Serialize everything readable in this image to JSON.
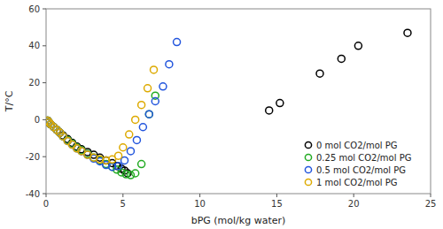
{
  "chart_data": {
    "type": "scatter",
    "x_label": "bPG (mol/kg water)",
    "y_label": "T/°C",
    "xlim": [
      0,
      25
    ],
    "ylim": [
      -40,
      60
    ],
    "xticks": [
      0,
      5,
      10,
      15,
      20,
      25
    ],
    "yticks": [
      -40,
      -20,
      0,
      20,
      40,
      60
    ],
    "grid": false,
    "legend": "lower right",
    "marker": "open-circle",
    "series": [
      {
        "name": "0 mol CO2/mol PG",
        "color": "black",
        "x": [
          0.1,
          0.2,
          0.3,
          0.5,
          0.7,
          0.9,
          1.1,
          1.4,
          1.7,
          2.0,
          2.3,
          2.7,
          3.1,
          3.5,
          3.9,
          4.3,
          4.6,
          4.9,
          5.1,
          5.3,
          14.5,
          15.2,
          17.8,
          19.2,
          20.3,
          23.5
        ],
        "values": [
          -0.5,
          -1.5,
          -2.5,
          -4.0,
          -5.5,
          -7.0,
          -8.5,
          -10.5,
          -12.5,
          -14.5,
          -16.0,
          -17.5,
          -19.0,
          -20.5,
          -22.0,
          -23.5,
          -25.0,
          -26.5,
          -27.5,
          -29.0,
          5.0,
          9.0,
          25.0,
          33.0,
          40.0,
          47.0
        ]
      },
      {
        "name": "0.25 mol CO2/mol PG",
        "color": "#22AA22",
        "x": [
          0.1,
          0.2,
          0.3,
          0.5,
          0.7,
          0.9,
          1.1,
          1.4,
          1.7,
          2.0,
          2.3,
          2.7,
          3.1,
          3.5,
          3.9,
          4.3,
          4.6,
          4.9,
          5.2,
          5.5,
          5.8,
          6.2,
          6.7,
          7.1
        ],
        "values": [
          -0.5,
          -1.5,
          -2.5,
          -4.0,
          -5.5,
          -7.0,
          -9.0,
          -11.0,
          -13.0,
          -15.0,
          -16.5,
          -18.5,
          -20.5,
          -22.0,
          -24.0,
          -25.5,
          -27.0,
          -28.5,
          -29.5,
          -30.0,
          -29.0,
          -24.0,
          3.0,
          13.0
        ]
      },
      {
        "name": "0.5 mol CO2/mol PG",
        "color": "#2255DD",
        "x": [
          0.1,
          0.2,
          0.3,
          0.5,
          0.7,
          0.9,
          1.1,
          1.4,
          1.7,
          2.0,
          2.3,
          2.7,
          3.1,
          3.5,
          3.9,
          4.3,
          4.7,
          5.1,
          5.5,
          5.9,
          6.3,
          6.7,
          7.1,
          7.6,
          8.0,
          8.5
        ],
        "values": [
          -0.5,
          -1.5,
          -2.5,
          -4.0,
          -5.5,
          -7.0,
          -9.0,
          -11.5,
          -13.5,
          -15.5,
          -17.0,
          -19.0,
          -21.0,
          -22.5,
          -24.5,
          -25.5,
          -25.0,
          -22.0,
          -17.0,
          -11.0,
          -4.0,
          3.0,
          10.0,
          18.0,
          30.0,
          42.0
        ]
      },
      {
        "name": "1 mol CO2/mol PG",
        "color": "#DDAA00",
        "x": [
          0.1,
          0.2,
          0.3,
          0.5,
          0.7,
          0.9,
          1.1,
          1.4,
          1.7,
          2.0,
          2.3,
          2.7,
          3.1,
          3.5,
          3.9,
          4.3,
          4.7,
          5.0,
          5.4,
          5.8,
          6.2,
          6.6,
          7.0
        ],
        "values": [
          -0.5,
          -1.5,
          -2.5,
          -4.0,
          -5.5,
          -7.0,
          -9.0,
          -11.5,
          -13.5,
          -15.5,
          -17.0,
          -19.0,
          -20.5,
          -21.5,
          -22.0,
          -21.5,
          -19.5,
          -15.0,
          -8.0,
          0.0,
          8.0,
          17.0,
          27.0
        ]
      }
    ]
  }
}
